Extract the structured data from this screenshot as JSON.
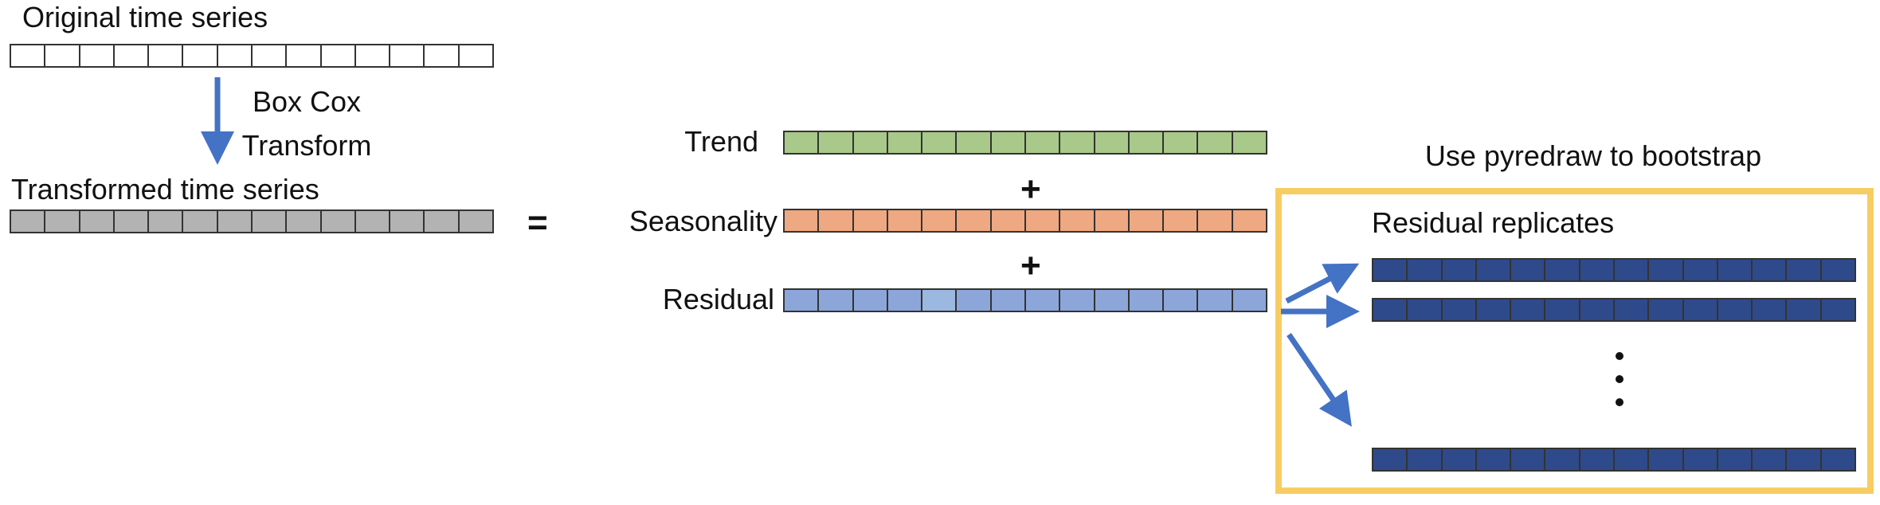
{
  "labels": {
    "original": "Original time series",
    "boxcox_line1": "Box Cox",
    "boxcox_line2": "Transform",
    "transformed": "Transformed time series",
    "equals": "=",
    "trend": "Trend",
    "plus1": "+",
    "seasonality": "Seasonality",
    "plus2": "+",
    "residual": "Residual",
    "bootstrap_title": "Use pyredraw to bootstrap",
    "replicates": "Residual replicates"
  },
  "strips": {
    "cells_per_strip": 14,
    "original": {
      "fill": "#ffffff"
    },
    "transformed": {
      "fill": "#b3b3b3"
    },
    "trend": {
      "fill": "#a8c98a"
    },
    "seasonality": {
      "fill": "#eea882"
    },
    "residual": {
      "fill": "#8ca6d9",
      "highlight_fill": "#9bb8e0",
      "highlight_index": 4
    },
    "replicate": {
      "fill": "#2e4a8a"
    }
  },
  "colors": {
    "arrow": "#4472c4",
    "box_border": "#f7cd62",
    "cell_border": "#333333"
  },
  "replicates": {
    "shown_rows": 3,
    "ellipsis": "vertical-dots"
  }
}
